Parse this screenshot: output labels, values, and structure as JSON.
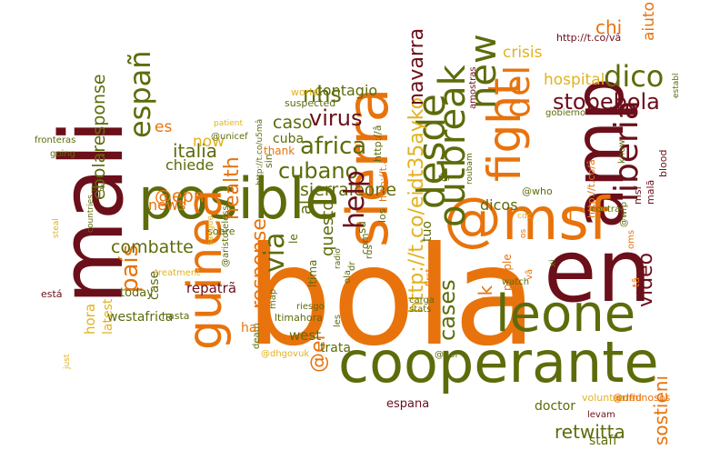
{
  "palette": {
    "orange": "#E8730C",
    "maroon": "#6B0F1A",
    "olive": "#5E6B0A",
    "gold": "#E3B21E",
    "white": "#FFFFFF"
  },
  "words": [
    {
      "text": "bola",
      "color": "orange"
    },
    {
      "text": "cooperante",
      "color": "olive"
    },
    {
      "text": "mali",
      "color": "maroon"
    },
    {
      "text": "posible",
      "color": "olive"
    },
    {
      "text": "amp",
      "color": "maroon"
    },
    {
      "text": "en",
      "color": "maroon"
    },
    {
      "text": "@msf",
      "color": "orange"
    },
    {
      "text": "sierra",
      "color": "orange"
    },
    {
      "text": "leone",
      "color": "olive"
    },
    {
      "text": "guinea",
      "color": "orange"
    },
    {
      "text": "fight",
      "color": "orange"
    },
    {
      "text": "desde",
      "color": "olive"
    },
    {
      "text": "outbreak",
      "color": "olive"
    },
    {
      "text": "liberia",
      "color": "maroon"
    },
    {
      "text": "del",
      "color": "orange"
    },
    {
      "text": "new",
      "color": "olive"
    },
    {
      "text": "españ",
      "color": "olive"
    },
    {
      "text": "dico",
      "color": "olive"
    },
    {
      "text": "stopebola",
      "color": "maroon"
    },
    {
      "text": "africa",
      "color": "olive"
    },
    {
      "text": "virus",
      "color": "maroon"
    },
    {
      "text": "cubano",
      "color": "olive"
    },
    {
      "text": "nhs",
      "color": "olive"
    },
    {
      "text": "sierraleone",
      "color": "olive"
    },
    {
      "text": "help",
      "color": "maroon"
    },
    {
      "text": "via",
      "color": "olive"
    },
    {
      "text": "país",
      "color": "orange"
    },
    {
      "text": "combatte",
      "color": "olive"
    },
    {
      "text": "@epn",
      "color": "orange"
    },
    {
      "text": "news",
      "color": "orange"
    },
    {
      "text": "health",
      "color": "orange"
    },
    {
      "text": "italia",
      "color": "olive"
    },
    {
      "text": "chiede",
      "color": "olive"
    },
    {
      "text": "ebolaresponse",
      "color": "olive"
    },
    {
      "text": "es",
      "color": "orange"
    },
    {
      "text": "now",
      "color": "gold"
    },
    {
      "text": "response",
      "color": "orange"
    },
    {
      "text": "@el",
      "color": "orange"
    },
    {
      "text": "http://t.co/eidt35ayko",
      "color": "gold"
    },
    {
      "text": "navarra",
      "color": "maroon"
    },
    {
      "text": "caso",
      "color": "olive"
    },
    {
      "text": "cuba",
      "color": "olive"
    },
    {
      "text": "contagio",
      "color": "olive"
    },
    {
      "text": "hospital",
      "color": "gold"
    },
    {
      "text": "crisis",
      "color": "gold"
    },
    {
      "text": "chi",
      "color": "orange"
    },
    {
      "text": "aiuto",
      "color": "orange"
    },
    {
      "text": "http://t.co/vâ",
      "color": "maroon"
    },
    {
      "text": "video",
      "color": "maroon"
    },
    {
      "text": "cases",
      "color": "olive"
    },
    {
      "text": "uk",
      "color": "orange"
    },
    {
      "text": "retwitta",
      "color": "olive"
    },
    {
      "text": "sostieni",
      "color": "orange"
    },
    {
      "text": "staff",
      "color": "olive"
    },
    {
      "text": "doctor",
      "color": "olive"
    },
    {
      "text": "espana",
      "color": "maroon"
    },
    {
      "text": "trata",
      "color": "olive"
    },
    {
      "text": "west",
      "color": "olive"
    },
    {
      "text": "westafrica",
      "color": "olive"
    },
    {
      "text": "today",
      "color": "olive"
    },
    {
      "text": "hora",
      "color": "gold"
    },
    {
      "text": "latest",
      "color": "gold"
    },
    {
      "text": "hasta",
      "color": "olive"
    },
    {
      "text": "está",
      "color": "maroon"
    },
    {
      "text": "case",
      "color": "olive"
    },
    {
      "text": "repatrã",
      "color": "maroon"
    },
    {
      "text": "treatment",
      "color": "gold"
    },
    {
      "text": "tuo",
      "color": "olive"
    },
    {
      "text": "questo",
      "color": "olive"
    },
    {
      "text": "dicos",
      "color": "olive"
    },
    {
      "text": "gt",
      "color": "olive"
    },
    {
      "text": "los",
      "color": "olive"
    },
    {
      "text": "http://t.co/â",
      "color": "orange"
    },
    {
      "text": "world",
      "color": "gold"
    },
    {
      "text": "suspected",
      "color": "olive"
    },
    {
      "text": "thank",
      "color": "orange"
    },
    {
      "text": "sin",
      "color": "olive"
    },
    {
      "text": "people",
      "color": "orange"
    },
    {
      "text": "carga",
      "color": "olive"
    },
    {
      "text": "stats",
      "color": "olive"
    },
    {
      "text": "first",
      "color": "orange"
    },
    {
      "text": "volunteers",
      "color": "gold"
    },
    {
      "text": "criminosos",
      "color": "orange"
    },
    {
      "text": "levam",
      "color": "maroon"
    },
    {
      "text": "@dfid",
      "color": "orange"
    },
    {
      "text": "@uol",
      "color": "olive"
    },
    {
      "text": "ltimahora",
      "color": "olive"
    },
    {
      "text": "death",
      "color": "olive"
    },
    {
      "text": "map",
      "color": "olive"
    },
    {
      "text": "@dhgovuk",
      "color": "gold"
    },
    {
      "text": "les",
      "color": "olive"
    },
    {
      "text": "riesgo",
      "color": "olive"
    },
    {
      "text": "ha",
      "color": "orange"
    },
    {
      "text": "watch",
      "color": "olive"
    },
    {
      "text": "contra",
      "color": "olive"
    },
    {
      "text": "oms",
      "color": "orange"
    },
    {
      "text": "@wfp",
      "color": "olive"
    },
    {
      "text": "msf",
      "color": "maroon"
    },
    {
      "text": "malã",
      "color": "maroon"
    },
    {
      "text": "blood",
      "color": "maroon"
    },
    {
      "text": "establ",
      "color": "olive"
    },
    {
      "text": "know",
      "color": "olive"
    },
    {
      "text": "gobierno",
      "color": "olive"
    },
    {
      "text": "amostras",
      "color": "maroon"
    },
    {
      "text": "roubam",
      "color": "olive"
    },
    {
      "text": "fronteras",
      "color": "olive"
    },
    {
      "text": "going",
      "color": "olive"
    },
    {
      "text": "patient",
      "color": "gold"
    },
    {
      "text": "@unicef",
      "color": "olive"
    },
    {
      "text": "http://t.co/u5mâ",
      "color": "olive"
    },
    {
      "text": "sobre",
      "color": "olive"
    },
    {
      "text": "countries",
      "color": "olive"
    },
    {
      "text": "steal",
      "color": "gold"
    },
    {
      "text": "just",
      "color": "gold"
    },
    {
      "text": "prâ",
      "color": "olive"
    },
    {
      "text": "sangue",
      "color": "gold"
    },
    {
      "text": "@aristotelessd",
      "color": "olive"
    },
    {
      "text": "http://t.ã",
      "color": "orange"
    },
    {
      "text": "http://â",
      "color": "olive"
    },
    {
      "text": "su",
      "color": "olive"
    },
    {
      "text": "com",
      "color": "olive"
    },
    {
      "text": "rus",
      "color": "olive"
    },
    {
      "text": "ola",
      "color": "olive"
    },
    {
      "text": "radio",
      "color": "olive"
    },
    {
      "text": "dr",
      "color": "olive"
    },
    {
      "text": "le",
      "color": "olive"
    },
    {
      "text": "al",
      "color": "olive"
    },
    {
      "text": "ltima",
      "color": "olive"
    },
    {
      "text": "tã",
      "color": "orange"
    },
    {
      "text": "xi",
      "color": "olive"
    },
    {
      "text": "os",
      "color": "orange"
    },
    {
      "text": "cdc",
      "color": "gold"
    },
    {
      "text": "vã",
      "color": "orange"
    },
    {
      "text": "ll",
      "color": "orange"
    },
    {
      "text": "@who",
      "color": "olive"
    }
  ]
}
